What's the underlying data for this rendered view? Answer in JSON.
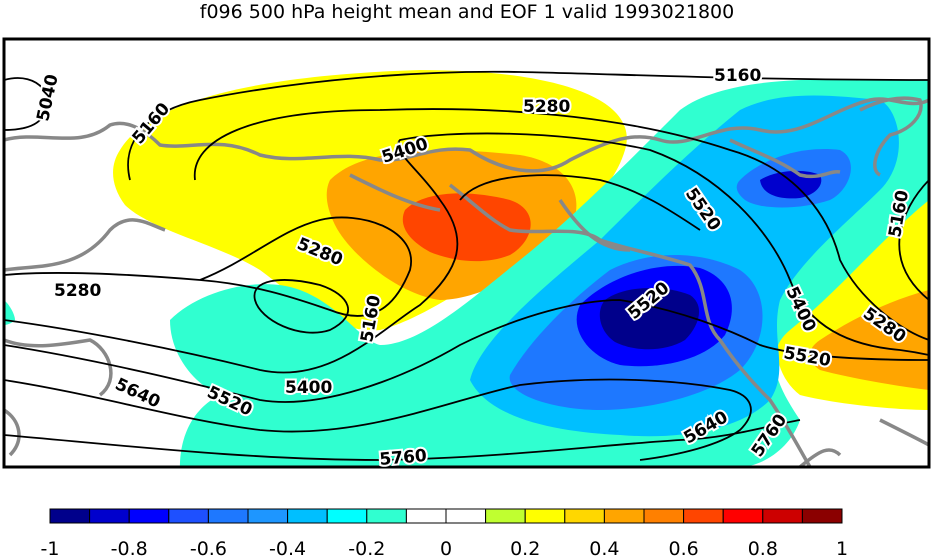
{
  "title": "f096 500 hPa height mean and EOF 1 valid 1993021800",
  "colorbar": {
    "colors": [
      "#00008b",
      "#0000cd",
      "#0000ff",
      "#1e50ff",
      "#1e78ff",
      "#1e96ff",
      "#00bfff",
      "#00ffff",
      "#30ffd0",
      "#ffffff",
      "#ffffff",
      "#c0ff30",
      "#ffff00",
      "#ffd700",
      "#ffa500",
      "#ff8000",
      "#ff4500",
      "#ff0000",
      "#cd0000",
      "#8b0000"
    ],
    "ticks": [
      "-1",
      "-0.8",
      "-0.6",
      "-0.4",
      "-0.2",
      "0",
      "0.2",
      "0.4",
      "0.6",
      "0.8",
      "1"
    ]
  },
  "contour_labels": {
    "c5040": "5040",
    "c5160": "5160",
    "c5280": "5280",
    "c5400": "5400",
    "c5520": "5520",
    "c5640": "5640",
    "c5760": "5760"
  }
}
